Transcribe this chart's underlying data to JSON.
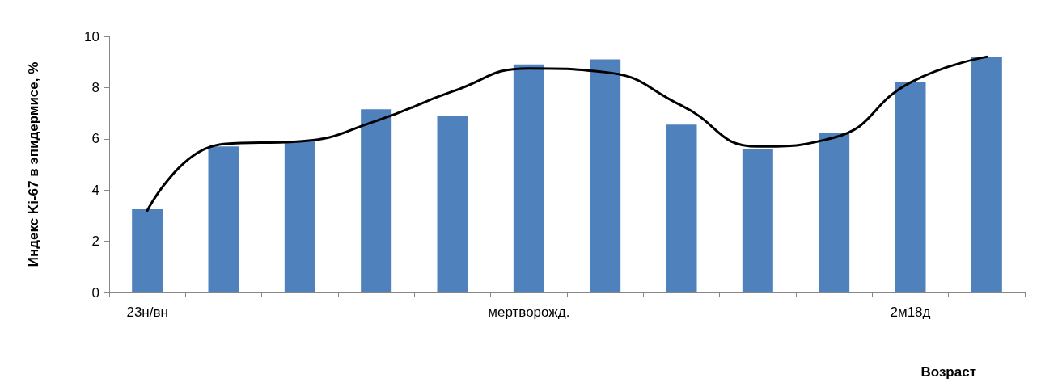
{
  "chart_data": {
    "type": "bar",
    "xlabel": "Возраст",
    "ylabel": "Индекс Ki-67 в эпидермисе, %",
    "categories": [
      "23н/вн",
      null,
      null,
      null,
      null,
      "мертворожд.",
      null,
      null,
      null,
      null,
      "2м18д",
      null
    ],
    "series": [
      {
        "color": "#4f81bd",
        "values": [
          3.25,
          5.7,
          5.9,
          7.15,
          6.9,
          8.9,
          9.1,
          6.55,
          5.6,
          6.25,
          8.2,
          9.2
        ]
      },
      {
        "type": "line",
        "color": "#000000",
        "values": [
          3.2,
          5.8,
          5.9,
          6.7,
          7.85,
          8.75,
          8.6,
          7.3,
          5.7,
          6.05,
          8.2,
          9.2
        ]
      }
    ],
    "ylim": [
      0,
      10
    ],
    "yticks": [
      0,
      2,
      4,
      6,
      8,
      10
    ],
    "grid": false,
    "marker": "none",
    "line_style": "solid"
  }
}
